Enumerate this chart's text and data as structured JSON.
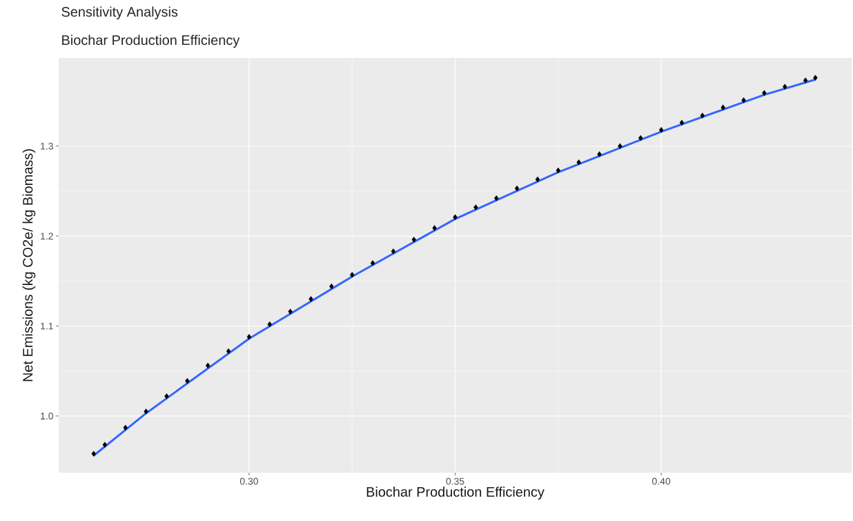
{
  "chart_data": {
    "type": "scatter",
    "title": "Sensitivity Analysis",
    "subtitle": "Biochar Production Efficiency",
    "xlabel": "Biochar Production Efficiency",
    "ylabel": "Net Emissions (kg CO2e/ kg Biomass)",
    "xlim": [
      0.2538,
      0.4462
    ],
    "ylim": [
      0.937,
      1.398
    ],
    "xticks": [
      {
        "value": 0.3,
        "label": "0.30"
      },
      {
        "value": 0.35,
        "label": "0.35"
      },
      {
        "value": 0.4,
        "label": "0.40"
      }
    ],
    "yticks": [
      {
        "value": 1.0,
        "label": "1.0"
      },
      {
        "value": 1.1,
        "label": "1.1"
      },
      {
        "value": 1.2,
        "label": "1.2"
      },
      {
        "value": 1.3,
        "label": "1.3"
      }
    ],
    "grid": true,
    "series": [
      {
        "marker": "diamond",
        "color": "#000000",
        "x": [
          0.2623,
          0.265,
          0.27,
          0.275,
          0.28,
          0.285,
          0.29,
          0.295,
          0.3,
          0.305,
          0.31,
          0.315,
          0.32,
          0.325,
          0.33,
          0.335,
          0.34,
          0.345,
          0.35,
          0.355,
          0.36,
          0.365,
          0.37,
          0.375,
          0.38,
          0.385,
          0.39,
          0.395,
          0.4,
          0.405,
          0.41,
          0.415,
          0.42,
          0.425,
          0.43,
          0.435,
          0.4374
        ],
        "values": [
          0.958,
          0.968,
          0.987,
          1.005,
          1.022,
          1.039,
          1.056,
          1.072,
          1.088,
          1.102,
          1.116,
          1.13,
          1.144,
          1.157,
          1.17,
          1.183,
          1.196,
          1.209,
          1.221,
          1.232,
          1.242,
          1.253,
          1.263,
          1.273,
          1.282,
          1.291,
          1.3,
          1.309,
          1.318,
          1.326,
          1.334,
          1.343,
          1.351,
          1.359,
          1.366,
          1.373,
          1.376
        ]
      },
      {
        "type": "line",
        "color": "#3366ff",
        "x": [
          0.2623,
          0.275,
          0.3,
          0.325,
          0.35,
          0.375,
          0.4,
          0.425,
          0.4374
        ],
        "values": [
          0.956,
          1.003,
          1.086,
          1.155,
          1.219,
          1.271,
          1.316,
          1.357,
          1.374
        ]
      }
    ]
  }
}
